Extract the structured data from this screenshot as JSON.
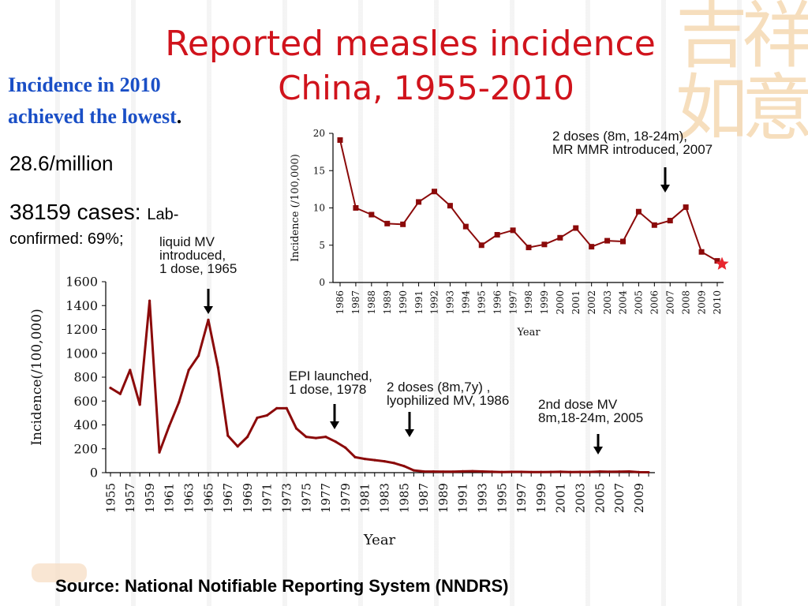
{
  "title": {
    "line1": "Reported measles incidence",
    "line2": "China, 1955-2010"
  },
  "notes": {
    "lowest_line1": "Incidence in 2010",
    "lowest_line2": "achieved the lowest",
    "lowest_suffix": ".",
    "rate": "28.6/million",
    "cases": "38159 cases:",
    "lab_word": "Lab-",
    "lab_rest": "confirmed: 69%;"
  },
  "source": "Source: National Notifiable Reporting System (NNDRS)",
  "colors": {
    "title": "#d0131c",
    "note": "#1a4fc6",
    "series": "#8b0a0a",
    "star": "#e8262e"
  },
  "chart_data": [
    {
      "type": "line",
      "title": "Reported measles incidence China, 1955-2010",
      "xlabel": "Year",
      "ylabel": "Incidence(/100,000)",
      "ylim": [
        0,
        1600
      ],
      "yticks": [
        "0",
        "200",
        "400",
        "600",
        "800",
        "1000",
        "1200",
        "1400",
        "1600"
      ],
      "x": [
        1955,
        1956,
        1957,
        1958,
        1959,
        1960,
        1961,
        1962,
        1963,
        1964,
        1965,
        1966,
        1967,
        1968,
        1969,
        1970,
        1971,
        1972,
        1973,
        1974,
        1975,
        1976,
        1977,
        1978,
        1979,
        1980,
        1981,
        1982,
        1983,
        1984,
        1985,
        1986,
        1987,
        1988,
        1989,
        1990,
        1991,
        1992,
        1993,
        1994,
        1995,
        1996,
        1997,
        1998,
        1999,
        2000,
        2001,
        2002,
        2003,
        2004,
        2005,
        2006,
        2007,
        2008,
        2009,
        2010
      ],
      "xticks": [
        "1955",
        "1957",
        "1959",
        "1961",
        "1963",
        "1965",
        "1967",
        "1969",
        "1971",
        "1973",
        "1975",
        "1977",
        "1979",
        "1981",
        "1983",
        "1985",
        "1987",
        "1989",
        "1991",
        "1993",
        "1995",
        "1997",
        "1999",
        "2001",
        "2003",
        "2005",
        "2007",
        "2009"
      ],
      "values": [
        710,
        660,
        860,
        570,
        1440,
        170,
        390,
        590,
        860,
        980,
        1280,
        880,
        310,
        220,
        300,
        460,
        480,
        540,
        540,
        370,
        300,
        290,
        300,
        260,
        210,
        130,
        115,
        105,
        95,
        80,
        55,
        19,
        10,
        9,
        8,
        8,
        11,
        12,
        10,
        7.5,
        5,
        6.4,
        7,
        4.7,
        5.1,
        6,
        7.3,
        4.8,
        5.6,
        5.5,
        9.5,
        7.7,
        8.3,
        10.1,
        4.1,
        2.9
      ],
      "annotations": [
        {
          "year": 1965,
          "label_lines": [
            "liquid MV",
            "introduced,",
            "1 dose, 1965"
          ]
        },
        {
          "year": 1978,
          "label_lines": [
            "EPI launched,",
            "1 dose, 1978"
          ]
        },
        {
          "year": 1986,
          "label_lines": [
            "2 doses (8m,7y) ,",
            "lyophilized MV, 1986"
          ]
        },
        {
          "year": 2005,
          "label_lines": [
            "2nd dose MV",
            "8m,18-24m, 2005"
          ]
        }
      ]
    },
    {
      "type": "line",
      "title": "",
      "xlabel": "Year",
      "ylabel": "Incidence (/100,000)",
      "ylim": [
        0,
        20
      ],
      "yticks": [
        "0",
        "5",
        "10",
        "15",
        "20"
      ],
      "x": [
        1986,
        1987,
        1988,
        1989,
        1990,
        1991,
        1992,
        1993,
        1994,
        1995,
        1996,
        1997,
        1998,
        1999,
        2000,
        2001,
        2002,
        2003,
        2004,
        2005,
        2006,
        2007,
        2008,
        2009,
        2010
      ],
      "xticks": [
        "1986",
        "1987",
        "1988",
        "1989",
        "1990",
        "1991",
        "1992",
        "1993",
        "1994",
        "1995",
        "1996",
        "1997",
        "1998",
        "1999",
        "2000",
        "2001",
        "2002",
        "2003",
        "2004",
        "2005",
        "2006",
        "2007",
        "2008",
        "2009",
        "2010"
      ],
      "values": [
        19.1,
        10,
        9.1,
        7.9,
        7.8,
        10.8,
        12.2,
        10.3,
        7.5,
        5,
        6.4,
        7,
        4.7,
        5.1,
        6,
        7.3,
        4.8,
        5.6,
        5.5,
        9.5,
        7.7,
        8.3,
        10.1,
        4.1,
        2.9
      ],
      "annotations": [
        {
          "year": 2007,
          "label_lines": [
            "2 doses (8m, 18-24m),",
            "MR MMR introduced, 2007"
          ]
        }
      ]
    }
  ]
}
